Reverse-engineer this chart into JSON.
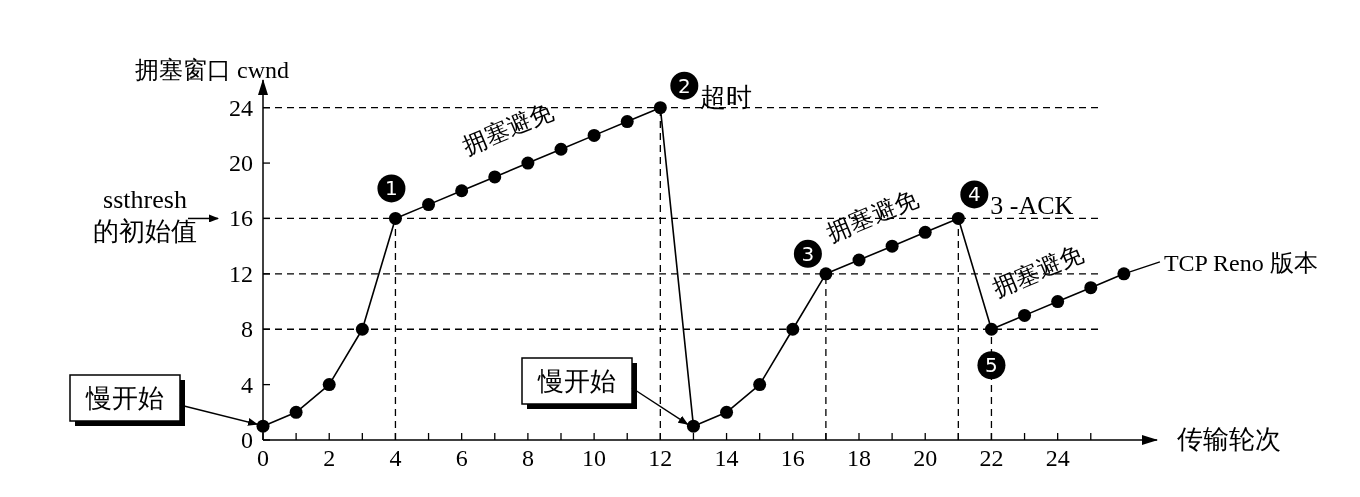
{
  "chart_data": {
    "type": "line",
    "ylabel": "拥塞窗口 cwnd",
    "xlabel": "传输轮次",
    "x": [
      0,
      1,
      2,
      3,
      4,
      5,
      6,
      7,
      8,
      9,
      10,
      11,
      12,
      13,
      14,
      15,
      16,
      17,
      18,
      19,
      20,
      21,
      22,
      23,
      24,
      25,
      26
    ],
    "values": [
      1,
      2,
      4,
      8,
      16,
      17,
      18,
      19,
      20,
      21,
      22,
      23,
      24,
      1,
      2,
      4,
      8,
      12,
      13,
      14,
      15,
      16,
      8,
      9,
      10,
      11,
      12
    ],
    "color": "#000000",
    "marker": "circle",
    "xlim": [
      0,
      27
    ],
    "ylim": [
      0,
      26
    ],
    "xticks": [
      0,
      {
        "value": 1,
        "label": null
      },
      2,
      {
        "value": 3,
        "label": null
      },
      4,
      {
        "value": 5,
        "label": null
      },
      6,
      {
        "value": 7,
        "label": null
      },
      8,
      {
        "value": 9,
        "label": null
      },
      10,
      {
        "value": 11,
        "label": null
      },
      12,
      {
        "value": 13,
        "label": null
      },
      14,
      {
        "value": 15,
        "label": null
      },
      16,
      {
        "value": 17,
        "label": null
      },
      18,
      {
        "value": 19,
        "label": null
      },
      20,
      {
        "value": 21,
        "label": null
      },
      22,
      {
        "value": 23,
        "label": null
      },
      24,
      {
        "value": 25,
        "label": null
      }
    ],
    "yticks": [
      0,
      4,
      8,
      12,
      16,
      20,
      24
    ],
    "ref_lines": [
      {
        "axis": "y",
        "value": 24,
        "line_style": "dashed"
      },
      {
        "axis": "y",
        "value": 16,
        "label": "ssthresh 的初始值",
        "line_style": "dashed"
      },
      {
        "axis": "y",
        "value": 12,
        "line_style": "dashed"
      },
      {
        "axis": "y",
        "value": 8,
        "line_style": "dashed"
      },
      {
        "axis": "x",
        "value": 4,
        "line_style": "dashed"
      },
      {
        "axis": "x",
        "value": 12,
        "line_style": "dashed"
      },
      {
        "axis": "x",
        "value": 17,
        "line_style": "dashed"
      },
      {
        "axis": "x",
        "value": 21,
        "line_style": "dashed"
      },
      {
        "axis": "x",
        "value": 22,
        "line_style": "dashed"
      }
    ],
    "annotations": [
      {
        "text": "1",
        "x": 4,
        "y": 16
      },
      {
        "text": "2",
        "x": 12,
        "y": 24
      },
      {
        "text": "超时",
        "x": 12,
        "y": 24
      },
      {
        "text": "3",
        "x": 17,
        "y": 12
      },
      {
        "text": "4",
        "x": 21,
        "y": 16
      },
      {
        "text": "3 -ACK",
        "x": 21,
        "y": 16
      },
      {
        "text": "5",
        "x": 22,
        "y": 8
      },
      {
        "text": "拥塞避免",
        "x": 7.5,
        "y": 19.5
      },
      {
        "text": "拥塞避免",
        "x": 18.5,
        "y": 13.5
      },
      {
        "text": "拥塞避免",
        "x": 23.5,
        "y": 9.5
      },
      {
        "text": "慢开始",
        "x": 0,
        "y": 1
      },
      {
        "text": "慢开始",
        "x": 13,
        "y": 1
      },
      {
        "text": "TCP Reno 版本",
        "x": 26,
        "y": 12
      }
    ]
  }
}
